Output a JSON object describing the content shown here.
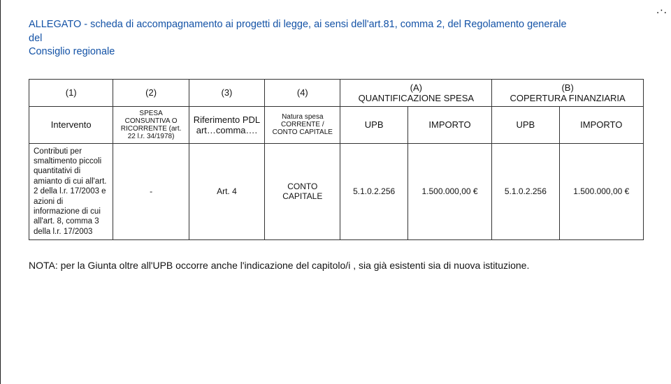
{
  "title_line1": "ALLEGATO - scheda di accompagnamento ai progetti di legge, ai sensi dell'art.81, comma 2, del Regolamento generale del",
  "title_line2": "Consiglio regionale",
  "table": {
    "top_row": {
      "c1": "(1)",
      "c2": "(2)",
      "c3": "(3)",
      "c4": "(4)",
      "groupA": "(A)\nQUANTIFICAZIONE SPESA",
      "groupB": "(B)\nCOPERTURA FINANZIARIA"
    },
    "header_row": {
      "intervento": "Intervento",
      "spesa": "SPESA CONSUNTIVA O RICORRENTE (art. 22 l.r. 34/1978)",
      "rif": "Riferimento PDL art…comma….",
      "natura": "Natura spesa CORRENTE / CONTO CAPITALE",
      "upb": "UPB",
      "importo": "IMPORTO",
      "upb2": "UPB",
      "importo2": "IMPORTO"
    },
    "data_row": {
      "intervento": "Contributi per smaltimento piccoli quantitativi di amianto di cui all'art. 2 della l.r. 17/2003 e azioni di informazione di cui all'art. 8, comma 3 della l.r. 17/2003",
      "spesa": "-",
      "rif": "Art. 4",
      "natura": "CONTO CAPITALE",
      "upb": "5.1.0.2.256",
      "importo": "1.500.000,00 €",
      "upb2": "5.1.0.2.256",
      "importo2": "1.500.000,00 €"
    }
  },
  "note": "NOTA: per la Giunta oltre all'UPB occorre anche l'indicazione del capitolo/i , sia già esistenti sia di nuova istituzione.",
  "corner_dots": ". ·   ."
}
